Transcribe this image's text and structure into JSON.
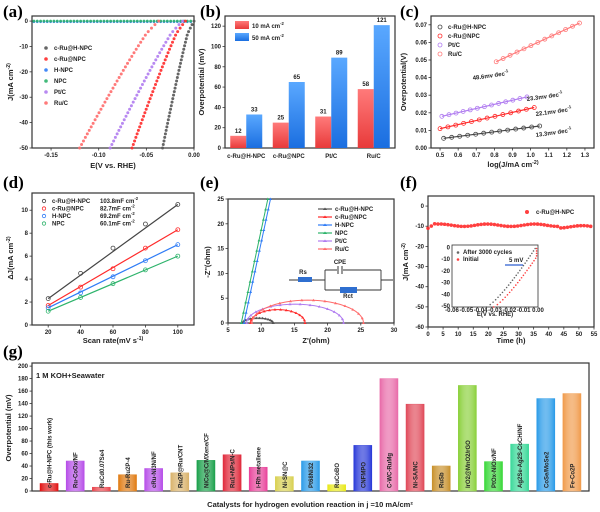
{
  "chart_data": [
    {
      "panel": "(a)",
      "type": "scatter",
      "title": "",
      "xlabel": "E(V vs. RHE)",
      "ylabel": "J(mA cm-2)",
      "xlim": [
        -0.17,
        0.0
      ],
      "ylim": [
        -50,
        2
      ],
      "xticks": [
        "-0.15",
        "-0.10",
        "-0.05",
        "0.00"
      ],
      "yticks": [
        "0",
        "-10",
        "-20",
        "-30",
        "-40",
        "-50"
      ],
      "legend_position": "top-left",
      "series": [
        {
          "name": "c-Ru@H-NPC",
          "color": "#555555",
          "onset": -0.003,
          "e_at_minus50": -0.033
        },
        {
          "name": "c-Ru@NPC",
          "color": "#ff2a2a",
          "onset": -0.012,
          "e_at_minus50": -0.065
        },
        {
          "name": "H-NPC",
          "color": "#2f7cf6",
          "onset": null,
          "e_at_minus50": null
        },
        {
          "name": "NPC",
          "color": "#2db36b",
          "onset": null,
          "e_at_minus50": null
        },
        {
          "name": "Pt/C",
          "color": "#b07cf0",
          "onset": -0.015,
          "e_at_minus50": -0.088
        },
        {
          "name": "Ru/C",
          "color": "#ff6b6b",
          "onset": -0.04,
          "e_at_minus50": -0.12
        }
      ]
    },
    {
      "panel": "(b)",
      "type": "bar",
      "title": "",
      "xlabel": "",
      "ylabel": "Overpotential (mV)",
      "ylim": [
        0,
        130
      ],
      "yticks": [
        "0",
        "20",
        "40",
        "60",
        "80",
        "100",
        "120"
      ],
      "categories": [
        "c-Ru@H-NPC",
        "c-Ru@NPC",
        "Pt/C",
        "Ru/C"
      ],
      "legend_position": "top-left",
      "series": [
        {
          "name": "10 mA cm-2",
          "color": "#f05a5a",
          "values": [
            12,
            25,
            31,
            58
          ],
          "labels": [
            "12",
            "25",
            "31",
            "58"
          ]
        },
        {
          "name": "50 mA cm-2",
          "color": "#2f86ec",
          "values": [
            33,
            65,
            89,
            121
          ],
          "labels": [
            "33",
            "65",
            "89",
            "121"
          ]
        }
      ]
    },
    {
      "panel": "(c)",
      "type": "scatter",
      "title": "",
      "xlabel": "log(J/mA cm-2)",
      "ylabel": "Overpotential(V)",
      "xlim": [
        0.45,
        1.35
      ],
      "ylim": [
        0.0,
        0.075
      ],
      "xticks": [
        "0.5",
        "0.6",
        "0.7",
        "0.8",
        "0.9",
        "1.0",
        "1.1",
        "1.2",
        "1.3"
      ],
      "yticks": [
        "0.00",
        "0.01",
        "0.02",
        "0.03",
        "0.04",
        "0.05",
        "0.06",
        "0.07"
      ],
      "legend_position": "top-left",
      "series": [
        {
          "name": "c-Ru@H-NPC",
          "color": "#444444",
          "x": [
            0.52,
            1.05
          ],
          "y": [
            0.0055,
            0.0125
          ],
          "annotation": "13.3mv dec-1"
        },
        {
          "name": "c-Ru@NPC",
          "color": "#ff2a2a",
          "x": [
            0.5,
            1.02
          ],
          "y": [
            0.011,
            0.023
          ],
          "annotation": "22.1mv dec-1"
        },
        {
          "name": "Pt/C",
          "color": "#b07cf0",
          "x": [
            0.51,
            0.98
          ],
          "y": [
            0.018,
            0.029
          ],
          "annotation": "23.3mv dec-1"
        },
        {
          "name": "Ru/C",
          "color": "#ff7a7a",
          "x": [
            0.81,
            1.27
          ],
          "y": [
            0.049,
            0.071
          ],
          "annotation": "48.6mv dec-1"
        }
      ]
    },
    {
      "panel": "(d)",
      "type": "line",
      "title": "",
      "xlabel": "Scan rate(mV s-1)",
      "ylabel": "ΔJ(mA cm-2)",
      "xlim": [
        10,
        110
      ],
      "ylim": [
        0,
        11.5
      ],
      "xticks": [
        "20",
        "40",
        "60",
        "80",
        "100"
      ],
      "yticks": [
        "0",
        "2",
        "4",
        "6",
        "8",
        "10"
      ],
      "x": [
        20,
        40,
        60,
        80,
        100
      ],
      "legend_position": "top-left",
      "series": [
        {
          "name": "c-Ru@H-NPC",
          "capacitance": "103.8mF cm-2",
          "color": "#444444",
          "values": [
            2.3,
            4.5,
            6.7,
            8.8,
            10.5
          ]
        },
        {
          "name": "c-Ru@NPC",
          "capacitance": "82.7mF cm-2",
          "color": "#ff2a2a",
          "values": [
            1.7,
            3.3,
            4.9,
            6.7,
            8.3
          ]
        },
        {
          "name": "H-NPC",
          "capacitance": "69.2mF cm-2",
          "color": "#2f7cf6",
          "values": [
            1.5,
            2.8,
            4.2,
            5.6,
            7.0
          ]
        },
        {
          "name": "NPC",
          "capacitance": "60.1mF cm-2",
          "color": "#2db36b",
          "values": [
            1.2,
            2.4,
            3.6,
            4.8,
            6.0
          ]
        }
      ]
    },
    {
      "panel": "(e)",
      "type": "line",
      "title": "",
      "xlabel": "Z'(ohm)",
      "ylabel": "-Z''(ohm)",
      "xlim": [
        5,
        30
      ],
      "ylim": [
        0,
        25
      ],
      "xticks": [
        "5",
        "10",
        "15",
        "20",
        "25",
        "30"
      ],
      "yticks": [
        "0",
        "5",
        "10",
        "15",
        "20",
        "25"
      ],
      "legend_position": "top-right",
      "inset": {
        "labels": [
          "Rs",
          "CPE",
          "Rct"
        ]
      },
      "series": [
        {
          "name": "c-Ru@H-NPC",
          "color": "#555555",
          "start": 7.2,
          "end": 11.8,
          "peak": 1.0
        },
        {
          "name": "c-Ru@NPC",
          "color": "#ff2a2a",
          "start": 8.4,
          "end": 16.6,
          "peak": 2.7
        },
        {
          "name": "H-NPC",
          "color": "#2f7cf6",
          "start": 7.4,
          "end": 11.4,
          "peak": 25
        },
        {
          "name": "NPC",
          "color": "#2db36b",
          "start": 7.0,
          "end": 11.0,
          "peak": 25
        },
        {
          "name": "Pt/C",
          "color": "#b07cf0",
          "start": 7.8,
          "end": 22.4,
          "peak": 3.8
        },
        {
          "name": "Ru/C",
          "color": "#ff6b6b",
          "start": 8.6,
          "end": 25.4,
          "peak": 4.6
        }
      ]
    },
    {
      "panel": "(f)",
      "type": "scatter",
      "title": "",
      "xlabel": "Time (h)",
      "ylabel": "J(mA cm-2)",
      "xlim": [
        0,
        55
      ],
      "ylim": [
        -60,
        5
      ],
      "xticks": [
        "0",
        "5",
        "10",
        "15",
        "20",
        "25",
        "30",
        "35",
        "40",
        "45",
        "50",
        "55"
      ],
      "yticks": [
        "0",
        "-10",
        "-20",
        "-30",
        "-40",
        "-50",
        "-60"
      ],
      "legend_position": "top-right",
      "series": [
        {
          "name": "c-Ru@H-NPC",
          "color": "#ff2a2a",
          "approx_value": -9.5
        }
      ],
      "inset": {
        "xlabel": "E(V vs. RHE)",
        "ylabel": "J(mA cm-2)",
        "xticks": [
          "-0.06",
          "-0.05",
          "-0.04",
          "-0.03",
          "-0.02",
          "-0.01",
          "0.00"
        ],
        "yticks": [
          "0",
          "-10",
          "-20",
          "-30",
          "-40",
          "-50"
        ],
        "annotation": "5 mV",
        "series": [
          {
            "name": "After 3000 cycles",
            "color": "#555555"
          },
          {
            "name": "Initial",
            "color": "#ff2a2a"
          }
        ]
      }
    },
    {
      "panel": "(g)",
      "type": "bar",
      "title": "1 M KOH+Seawater",
      "xlabel": "Catalysts for hydrogen evolution reaction in j =10 mA/cm2",
      "ylabel": "Overpotential (mV)",
      "ylim": [
        0,
        205
      ],
      "yticks": [
        "0",
        "20",
        "40",
        "60",
        "80",
        "100",
        "120",
        "140",
        "160",
        "180",
        "200"
      ],
      "categories": [
        "c-Ru@H-NPC (this work)",
        "Ru-CoOx/NF",
        "RuCd0.07Se4",
        "Ru-Ru2P-4",
        "cRu-Ni3N/NF",
        "Ru2P@Ru/CNT",
        "NiCo@C/MXene/CF",
        "Ru1+NPs/N-C",
        "i-Rh metallene",
        "Ni-SN@C",
        "Pt68Ni32",
        "RuCoBO",
        "CNFMPO",
        "C-WC-RuMg",
        "Ni-SA/NC",
        "RuSb",
        "IrO2@MnO2/rGO",
        "PtOx-NiOx/NF",
        "Ag2Se-Ag2S-CoCH/NF",
        "CoSe/MoSe2",
        "Fe-Co2P"
      ],
      "values": [
        12,
        48,
        6,
        26,
        36,
        29,
        49,
        58,
        38,
        23,
        48,
        10,
        73,
        180,
        139,
        40,
        169,
        47,
        75,
        148,
        156
      ],
      "colors": [
        "#e01010",
        "#b64de8",
        "#e8424a",
        "#e07a10",
        "#b64de8",
        "#d9b26a",
        "#19a04a",
        "#e0283a",
        "#e8429a",
        "#d8d050",
        "#2a9be8",
        "#e8e818",
        "#2838d8",
        "#e86aa8",
        "#e04858",
        "#c8902a",
        "#8ad03a",
        "#38d838",
        "#38d898",
        "#2a9be8",
        "#f09a4a"
      ]
    }
  ]
}
